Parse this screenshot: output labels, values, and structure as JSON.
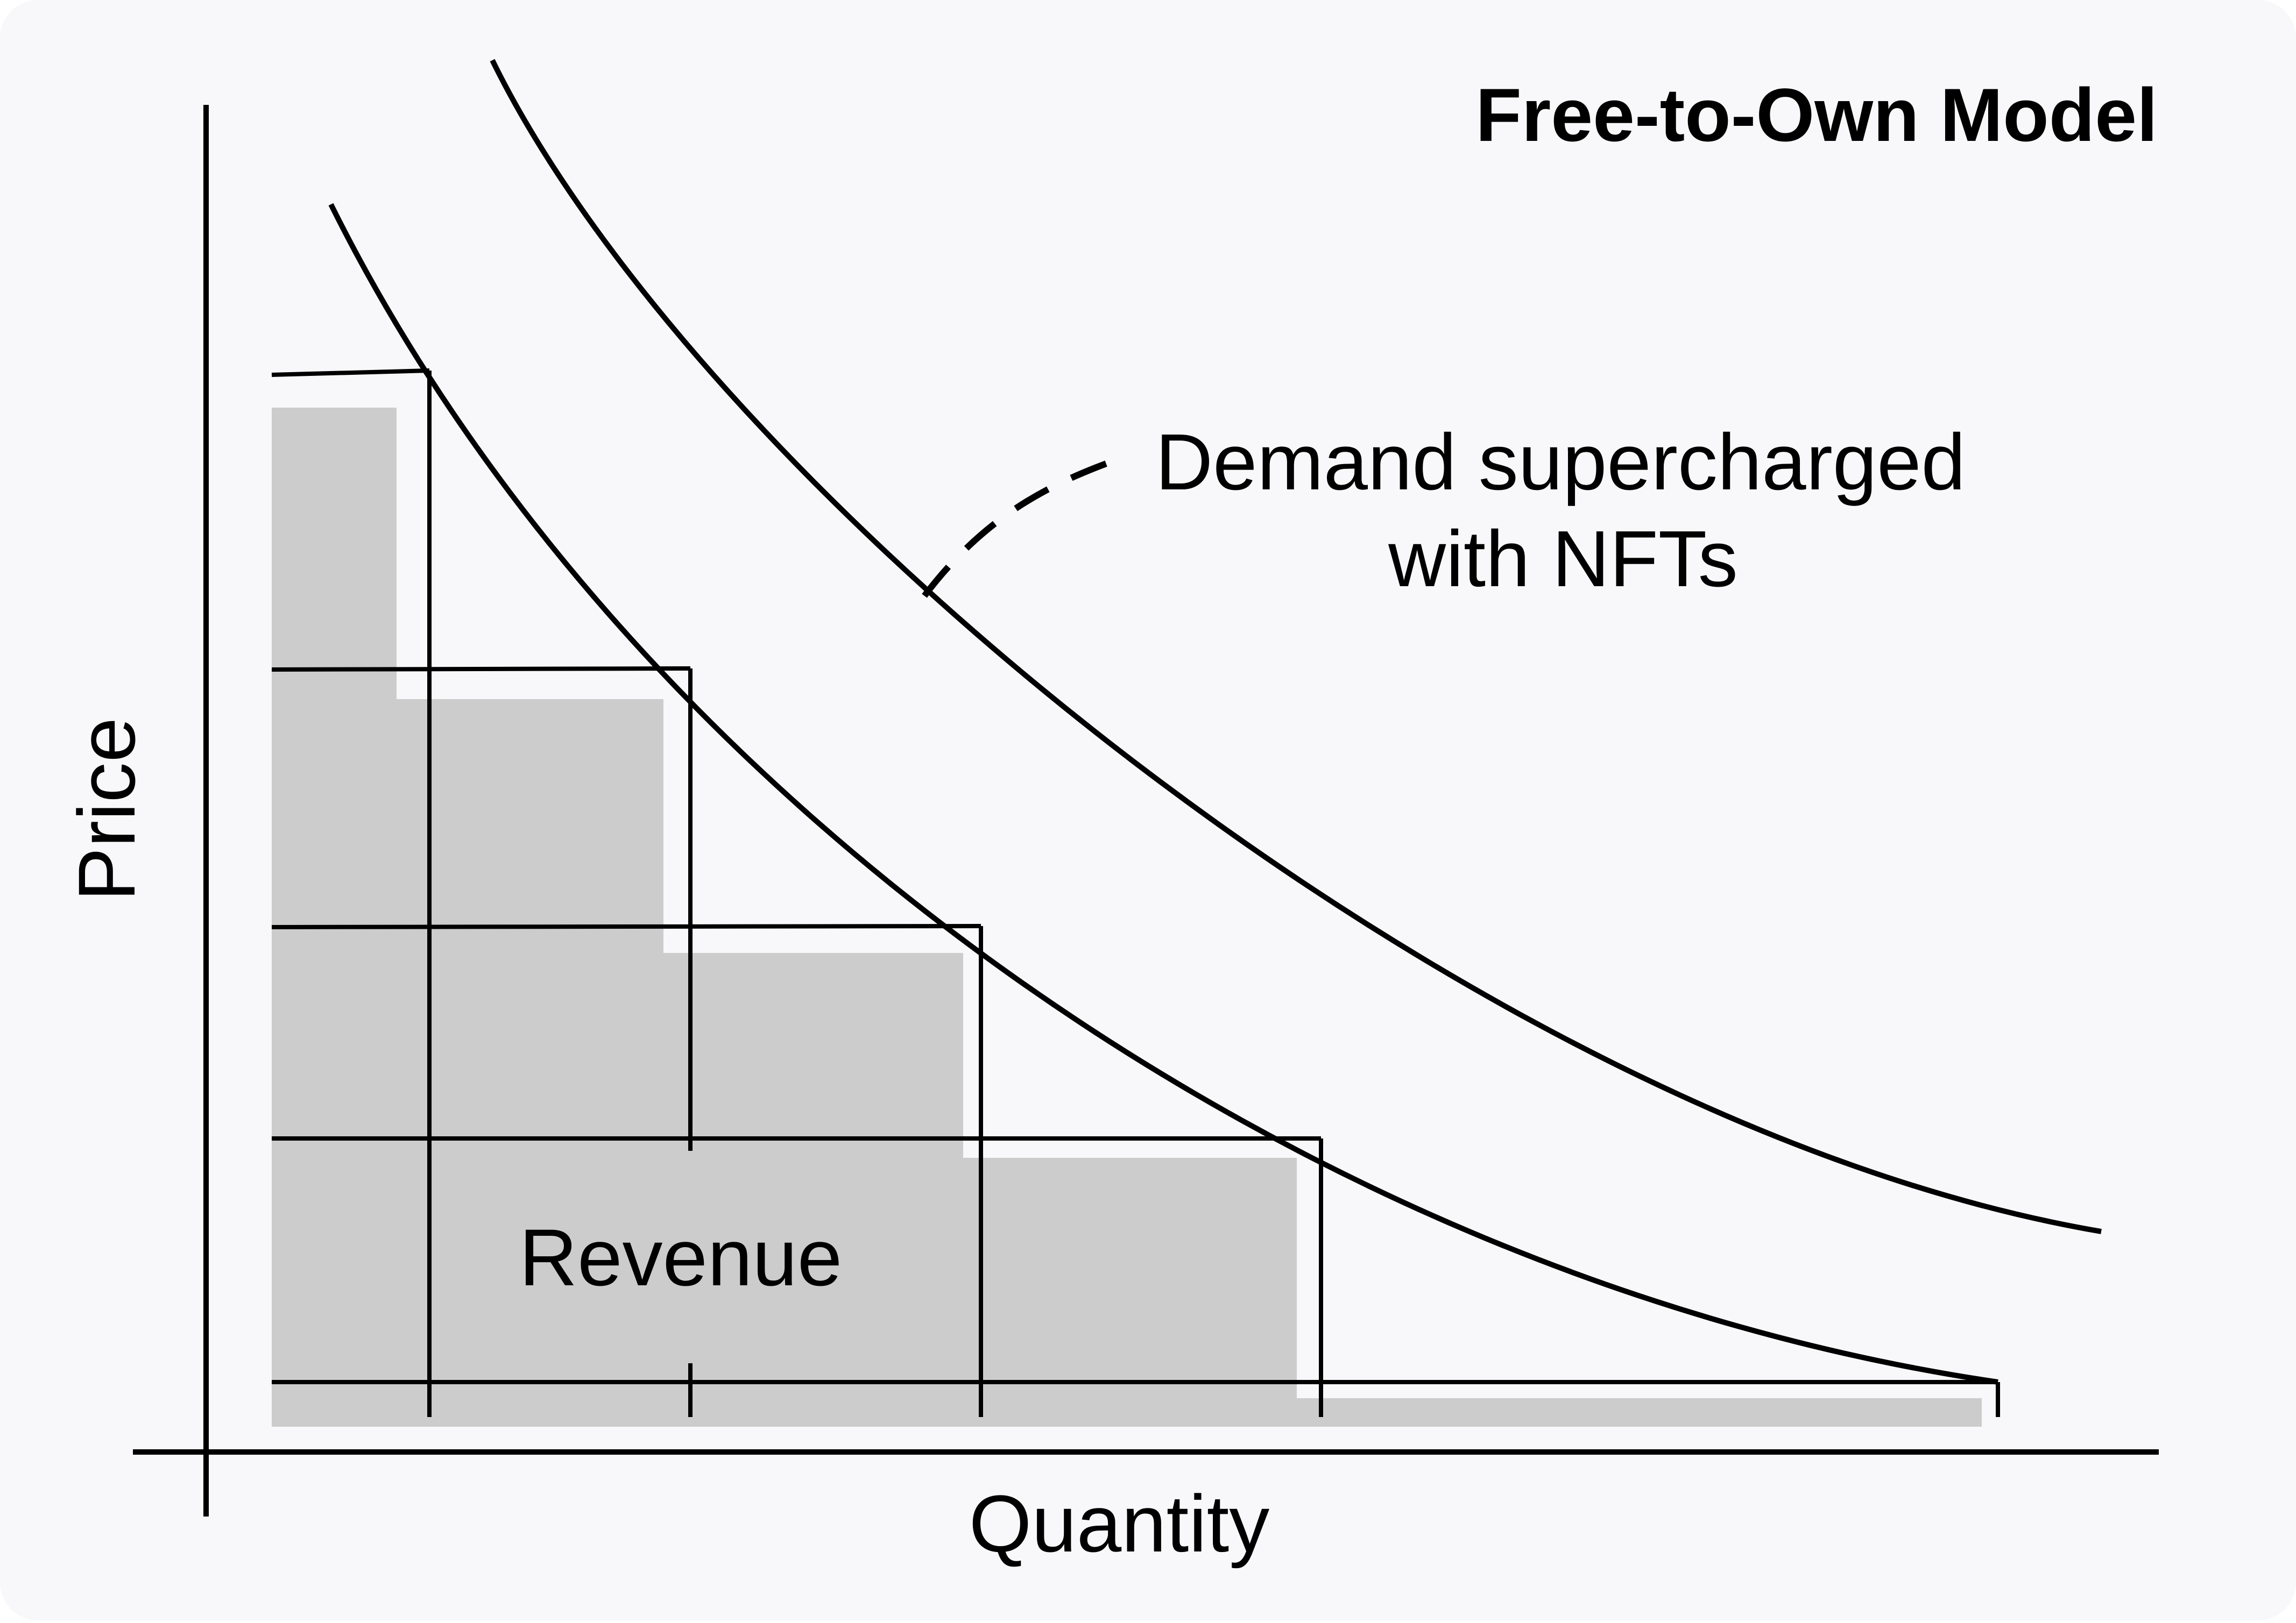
{
  "diagram": {
    "title": "Free-to-Own Model",
    "axis_x_label": "Quantity",
    "axis_y_label": "Price",
    "region_label": "Revenue",
    "annotation": {
      "line1": "Demand supercharged",
      "line2": "with NFTs"
    }
  },
  "colors": {
    "background": "#f8f8fa",
    "ink": "#000000",
    "revenue_fill": "#cccccc"
  }
}
